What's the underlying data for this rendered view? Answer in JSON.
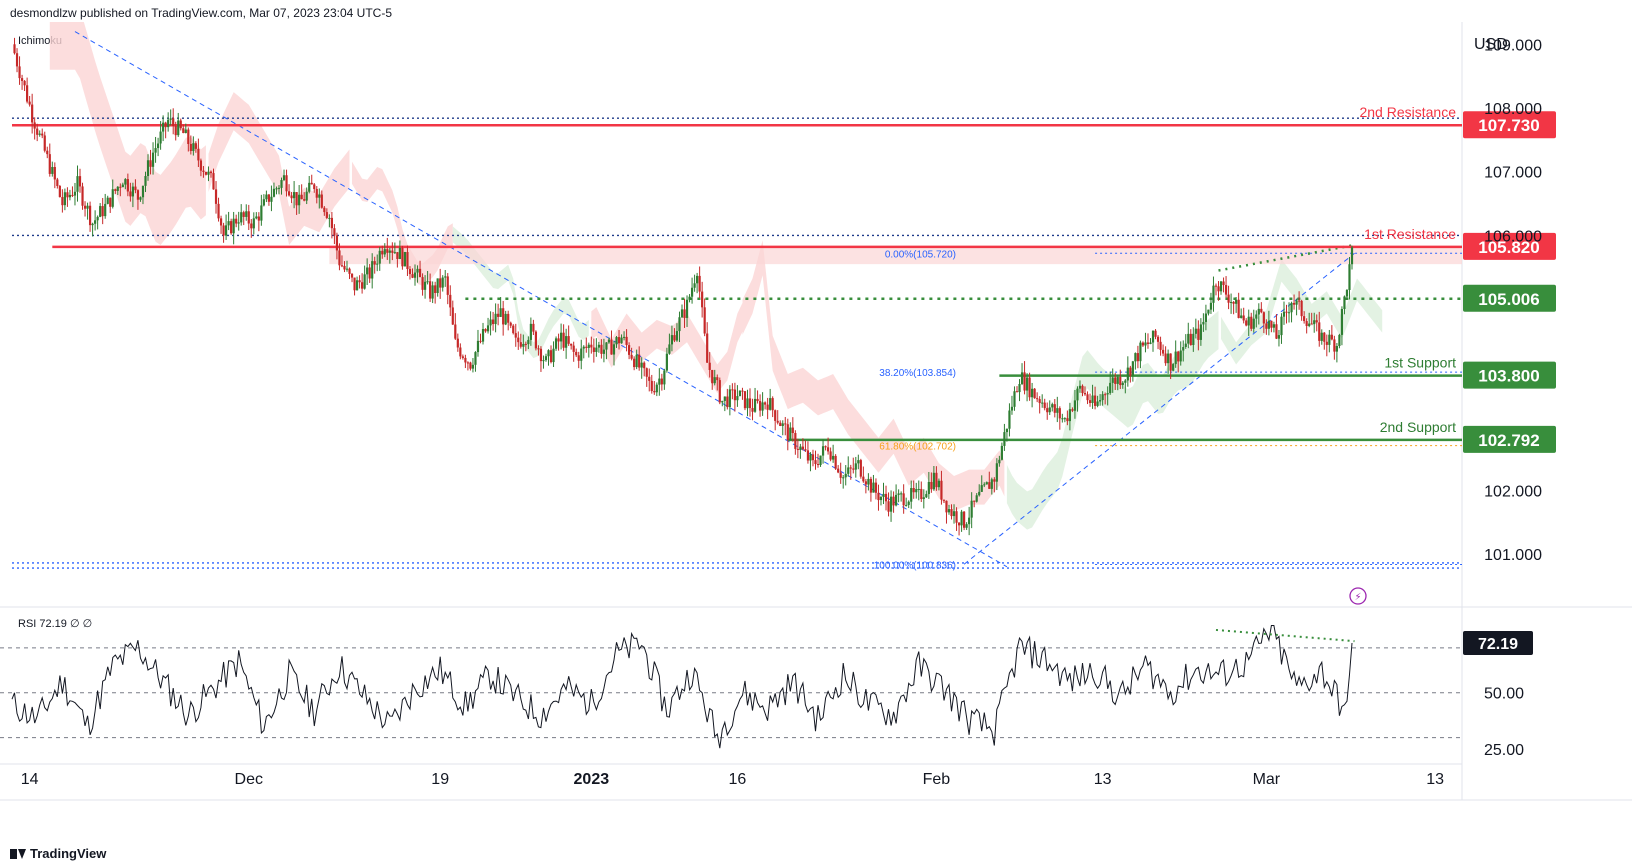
{
  "header": {
    "published": "desmondlzw published on TradingView.com, Mar 07, 2023 23:04 UTC-5"
  },
  "footer": {
    "brand": "TradingView"
  },
  "indicator_label": "Ichimoku",
  "rsi_label": "RSI  72.19  ∅  ∅",
  "currency": "USD",
  "colors": {
    "red": "#f23645",
    "green": "#388e3c",
    "dark": "#131722",
    "blue": "#2962ff",
    "orange": "#f7a21b",
    "cloud_red": "#fbd5d5",
    "cloud_green": "#dcefdc",
    "label_green": "#2e7d32"
  },
  "chart_data": {
    "type": "candlestick",
    "title": "",
    "price_axis": {
      "ticks": [
        "109.000",
        "108.000",
        "107.000",
        "106.000",
        "102.000",
        "101.000"
      ],
      "ylim": [
        100.2,
        109.35
      ]
    },
    "x_axis": {
      "ticks": [
        "14",
        "Dec",
        "19",
        "2023",
        "16",
        "Feb",
        "13",
        "Mar",
        "13"
      ]
    },
    "levels": [
      {
        "label": "2nd Resistance",
        "value": "107.730",
        "price": 107.73,
        "color": "#f23645"
      },
      {
        "label": "1st Resistance",
        "value": "105.820",
        "price": 105.82,
        "color": "#f23645"
      },
      {
        "label": "",
        "value": "105.006",
        "price": 105.006,
        "color": "#388e3c"
      },
      {
        "label": "1st Support",
        "value": "103.800",
        "price": 103.8,
        "color": "#388e3c"
      },
      {
        "label": "2nd Support",
        "value": "102.792",
        "price": 102.792,
        "color": "#388e3c"
      }
    ],
    "fibonacci": [
      {
        "label": "0.00%(105.720)",
        "price": 105.72
      },
      {
        "label": "38.20%(103.854)",
        "price": 103.854
      },
      {
        "label": "61.80%(102.702)",
        "price": 102.702
      },
      {
        "label": "100.00%(100.836)",
        "price": 100.836
      }
    ],
    "close_path": [
      [
        0,
        109.0
      ],
      [
        8,
        107.9
      ],
      [
        14,
        107.2
      ],
      [
        20,
        106.5
      ],
      [
        26,
        106.8
      ],
      [
        32,
        106.2
      ],
      [
        38,
        106.5
      ],
      [
        44,
        106.9
      ],
      [
        50,
        106.6
      ],
      [
        56,
        107.3
      ],
      [
        62,
        107.8
      ],
      [
        68,
        107.6
      ],
      [
        74,
        107.2
      ],
      [
        80,
        106.8
      ],
      [
        84,
        106.0
      ],
      [
        90,
        106.3
      ],
      [
        96,
        106.2
      ],
      [
        102,
        106.6
      ],
      [
        108,
        106.9
      ],
      [
        114,
        106.5
      ],
      [
        120,
        106.8
      ],
      [
        126,
        106.3
      ],
      [
        130,
        105.6
      ],
      [
        136,
        105.2
      ],
      [
        142,
        105.4
      ],
      [
        148,
        105.9
      ],
      [
        154,
        105.7
      ],
      [
        160,
        105.4
      ],
      [
        166,
        105.1
      ],
      [
        172,
        105.3
      ],
      [
        176,
        104.3
      ],
      [
        182,
        104.0
      ],
      [
        188,
        104.5
      ],
      [
        194,
        104.8
      ],
      [
        200,
        104.3
      ],
      [
        206,
        104.5
      ],
      [
        212,
        104.0
      ],
      [
        218,
        104.4
      ],
      [
        224,
        104.1
      ],
      [
        230,
        104.3
      ],
      [
        236,
        104.2
      ],
      [
        242,
        104.4
      ],
      [
        248,
        104.0
      ],
      [
        254,
        103.6
      ],
      [
        258,
        103.8
      ],
      [
        262,
        104.4
      ],
      [
        268,
        104.9
      ],
      [
        272,
        105.5
      ],
      [
        276,
        104.0
      ],
      [
        282,
        103.4
      ],
      [
        288,
        103.5
      ],
      [
        294,
        103.3
      ],
      [
        300,
        103.4
      ],
      [
        306,
        103.0
      ],
      [
        312,
        102.7
      ],
      [
        318,
        102.4
      ],
      [
        324,
        102.7
      ],
      [
        330,
        102.2
      ],
      [
        336,
        102.4
      ],
      [
        342,
        102.0
      ],
      [
        348,
        101.8
      ],
      [
        354,
        101.9
      ],
      [
        360,
        101.9
      ],
      [
        366,
        102.2
      ],
      [
        372,
        101.7
      ],
      [
        378,
        101.5
      ],
      [
        384,
        101.9
      ],
      [
        390,
        102.2
      ],
      [
        396,
        103.2
      ],
      [
        400,
        103.8
      ],
      [
        406,
        103.5
      ],
      [
        412,
        103.3
      ],
      [
        418,
        103.1
      ],
      [
        424,
        103.6
      ],
      [
        430,
        103.3
      ],
      [
        436,
        103.7
      ],
      [
        442,
        103.8
      ],
      [
        448,
        104.2
      ],
      [
        454,
        104.4
      ],
      [
        460,
        104.0
      ],
      [
        466,
        104.3
      ],
      [
        472,
        104.5
      ],
      [
        478,
        105.3
      ],
      [
        484,
        105.0
      ],
      [
        490,
        104.6
      ],
      [
        496,
        104.8
      ],
      [
        502,
        104.4
      ],
      [
        508,
        105.0
      ],
      [
        514,
        104.7
      ],
      [
        520,
        104.4
      ],
      [
        526,
        104.3
      ],
      [
        532,
        105.7
      ]
    ],
    "rsi": {
      "value": "72.19",
      "ticks": [
        "50.00",
        "25.00"
      ],
      "ylim": [
        20,
        86
      ],
      "bands": [
        70,
        50,
        30
      ],
      "x": [
        0,
        10,
        20,
        30,
        40,
        50,
        60,
        70,
        80,
        90,
        100,
        110,
        120,
        130,
        140,
        150,
        160,
        170,
        180,
        190,
        200,
        210,
        220,
        230,
        240,
        250,
        260,
        270,
        280,
        290,
        300,
        310,
        320,
        330,
        340,
        350,
        360,
        370,
        380,
        390,
        400,
        410,
        420,
        430,
        440,
        450,
        460,
        470,
        480,
        490,
        500,
        510,
        520,
        530,
        532
      ],
      "values": [
        45,
        38,
        55,
        35,
        62,
        70,
        55,
        40,
        52,
        64,
        35,
        58,
        42,
        62,
        48,
        35,
        52,
        60,
        44,
        58,
        48,
        40,
        52,
        45,
        67,
        72,
        42,
        60,
        30,
        50,
        43,
        55,
        38,
        58,
        45,
        40,
        62,
        52,
        38,
        33,
        70,
        65,
        55,
        60,
        48,
        62,
        50,
        60,
        58,
        63,
        78,
        52,
        60,
        40,
        72
      ]
    }
  }
}
